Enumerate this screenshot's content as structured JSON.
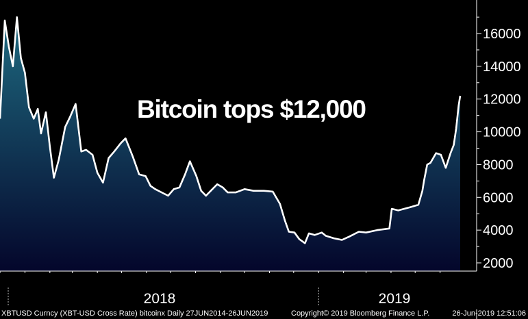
{
  "chart_data": {
    "type": "area",
    "title": "Bitcoin tops $12,000",
    "xlabel": "",
    "ylabel": "",
    "ylim": [
      1700,
      18000
    ],
    "y_ticks": [
      2000,
      4000,
      6000,
      8000,
      10000,
      12000,
      14000,
      16000
    ],
    "y_tick_labels": [
      "2000",
      "4000",
      "6000",
      "8000",
      "10000",
      "12000",
      "14000",
      "16000"
    ],
    "x_tick_labels": [
      "2018",
      "2019"
    ],
    "x_range": [
      "2017-12-01",
      "2019-06-26"
    ],
    "grid": false,
    "legend": "none",
    "colors": {
      "background": "#000000",
      "line": "#ffffff",
      "area_top": "#1e6a80",
      "area_bottom": "#04062b",
      "axis": "#ffffff"
    },
    "x": [
      "2017-12-01",
      "2017-12-07",
      "2017-12-12",
      "2017-12-17",
      "2017-12-22",
      "2017-12-27",
      "2018-01-01",
      "2018-01-06",
      "2018-01-12",
      "2018-01-17",
      "2018-01-21",
      "2018-01-27",
      "2018-02-01",
      "2018-02-06",
      "2018-02-12",
      "2018-02-20",
      "2018-02-26",
      "2018-03-05",
      "2018-03-12",
      "2018-03-18",
      "2018-03-26",
      "2018-04-01",
      "2018-04-08",
      "2018-04-15",
      "2018-04-22",
      "2018-04-30",
      "2018-05-06",
      "2018-05-15",
      "2018-05-23",
      "2018-05-31",
      "2018-06-06",
      "2018-06-12",
      "2018-06-20",
      "2018-06-28",
      "2018-07-05",
      "2018-07-12",
      "2018-07-19",
      "2018-07-25",
      "2018-08-02",
      "2018-08-08",
      "2018-08-14",
      "2018-08-20",
      "2018-08-28",
      "2018-09-04",
      "2018-09-10",
      "2018-09-20",
      "2018-10-01",
      "2018-10-12",
      "2018-10-25",
      "2018-11-05",
      "2018-11-14",
      "2018-11-20",
      "2018-11-25",
      "2018-12-02",
      "2018-12-08",
      "2018-12-15",
      "2018-12-20",
      "2018-12-27",
      "2019-01-05",
      "2019-01-10",
      "2019-01-20",
      "2019-01-30",
      "2019-02-08",
      "2019-02-20",
      "2019-03-01",
      "2019-03-15",
      "2019-03-30",
      "2019-04-02",
      "2019-04-10",
      "2019-04-25",
      "2019-05-05",
      "2019-05-10",
      "2019-05-12",
      "2019-05-16",
      "2019-05-20",
      "2019-05-27",
      "2019-06-02",
      "2019-06-08",
      "2019-06-14",
      "2019-06-18",
      "2019-06-21",
      "2019-06-24",
      "2019-06-26"
    ],
    "values": [
      10800,
      16800,
      15200,
      14000,
      17000,
      14500,
      13600,
      11500,
      10800,
      11400,
      9900,
      11200,
      9100,
      7200,
      8300,
      10300,
      10900,
      11700,
      8800,
      8900,
      8600,
      7500,
      6900,
      8400,
      8800,
      9300,
      9600,
      8500,
      7400,
      7300,
      6700,
      6500,
      6300,
      6100,
      6500,
      6600,
      7400,
      8200,
      7300,
      6400,
      6100,
      6400,
      6800,
      6600,
      6300,
      6300,
      6500,
      6400,
      6400,
      6350,
      5600,
      4600,
      3900,
      3850,
      3450,
      3200,
      3800,
      3700,
      3850,
      3650,
      3500,
      3400,
      3600,
      3900,
      3850,
      4000,
      4100,
      5300,
      5200,
      5400,
      5550,
      6400,
      7000,
      8000,
      8100,
      8700,
      8600,
      7800,
      8700,
      9200,
      10200,
      11600,
      12200
    ]
  },
  "footer": {
    "left": "XBTUSD Curncy (XBT-USD Cross Rate) bitcoinx  Daily 27JUN2014-26JUN2019",
    "copyright": "Copyright© 2019 Bloomberg Finance L.P.",
    "timestamp": "26-Jun-2019 12:51:06"
  }
}
